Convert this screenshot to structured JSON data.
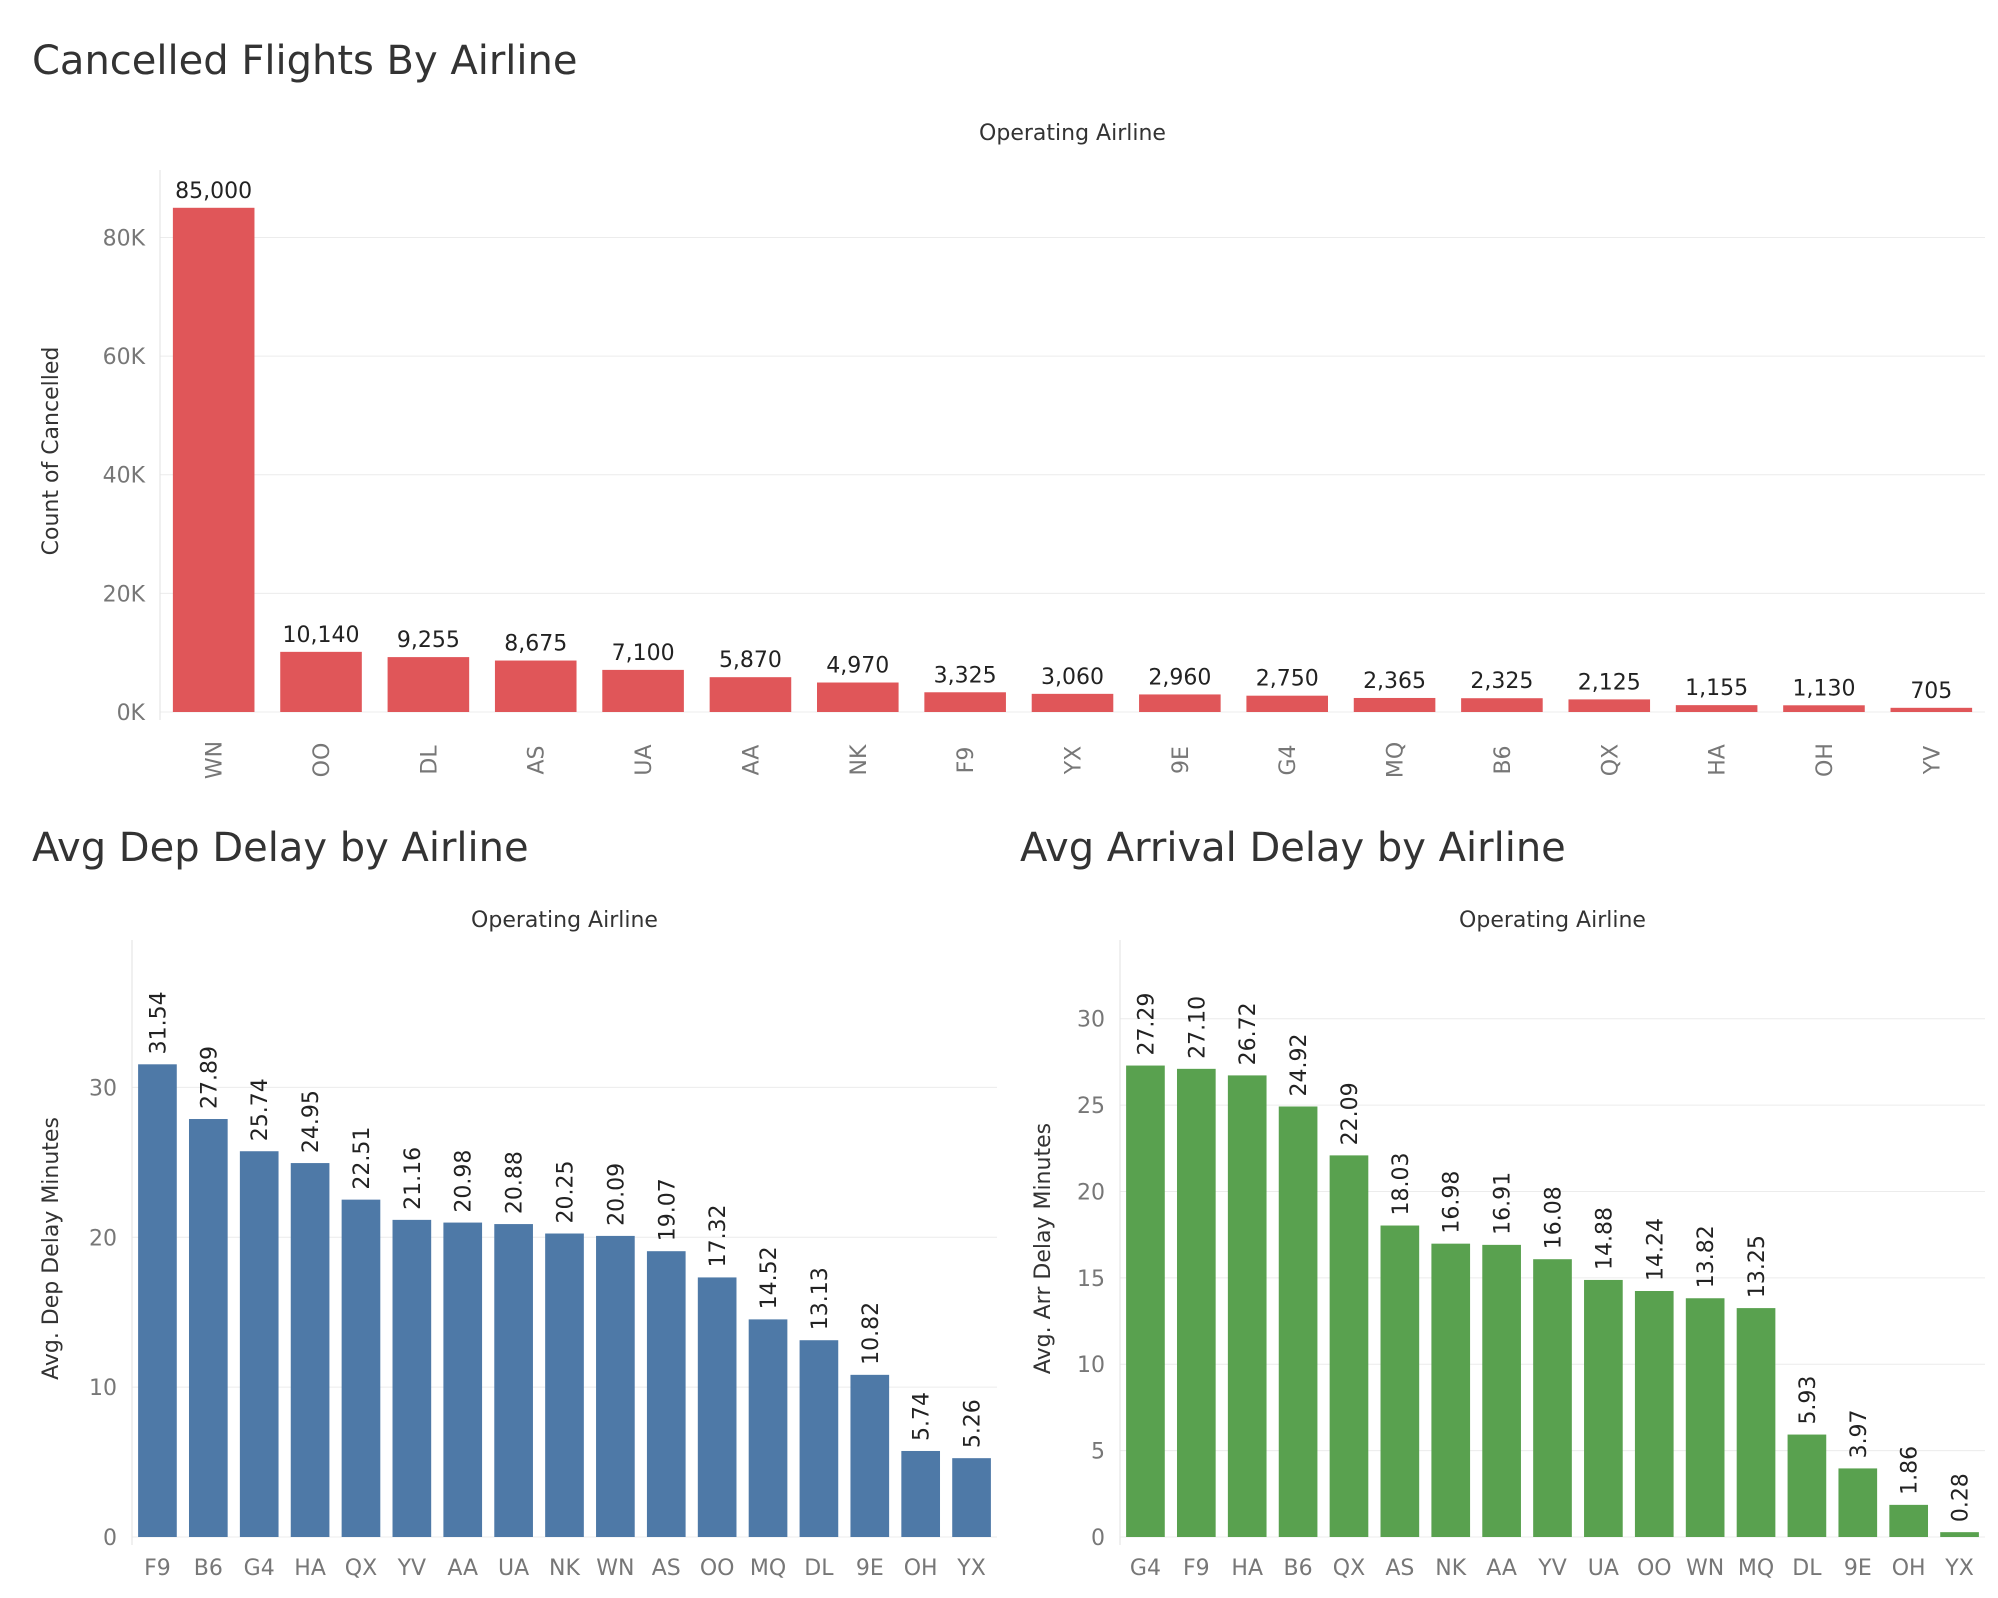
{
  "chart_data": [
    {
      "id": "cancelled",
      "type": "bar",
      "title": "Cancelled Flights By Airline",
      "xlabel": "Operating Airline",
      "ylabel": "Count of Cancelled",
      "categories": [
        "WN",
        "OO",
        "DL",
        "AS",
        "UA",
        "AA",
        "NK",
        "F9",
        "YX",
        "9E",
        "G4",
        "MQ",
        "B6",
        "QX",
        "HA",
        "OH",
        "YV"
      ],
      "values": [
        85000,
        10140,
        9255,
        8675,
        7100,
        5870,
        4970,
        3325,
        3060,
        2960,
        2750,
        2365,
        2325,
        2125,
        1155,
        1130,
        705
      ],
      "value_labels": [
        "85,000",
        "10,140",
        "9,255",
        "8,675",
        "7,100",
        "5,870",
        "4,970",
        "3,325",
        "3,060",
        "2,960",
        "2,750",
        "2,365",
        "2,325",
        "2,125",
        "1,155",
        "1,130",
        "705"
      ],
      "yticks": [
        0,
        20000,
        40000,
        60000,
        80000
      ],
      "ytick_labels": [
        "0K",
        "20K",
        "40K",
        "60K",
        "80K"
      ],
      "ylim": [
        0,
        88000
      ],
      "color": "#e05659",
      "rotate_x_labels": true,
      "rotate_value_labels": false,
      "grid": true
    },
    {
      "id": "dep",
      "type": "bar",
      "title": "Avg Dep Delay by Airline",
      "xlabel": "Operating Airline",
      "ylabel": "Avg. Dep Delay Minutes",
      "categories": [
        "F9",
        "B6",
        "G4",
        "HA",
        "QX",
        "YV",
        "AA",
        "UA",
        "NK",
        "WN",
        "AS",
        "OO",
        "MQ",
        "DL",
        "9E",
        "OH",
        "YX"
      ],
      "values": [
        31.54,
        27.89,
        25.74,
        24.95,
        22.51,
        21.16,
        20.98,
        20.88,
        20.25,
        20.09,
        19.07,
        17.32,
        14.52,
        13.13,
        10.82,
        5.74,
        5.26
      ],
      "value_labels": [
        "31.54",
        "27.89",
        "25.74",
        "24.95",
        "22.51",
        "21.16",
        "20.98",
        "20.88",
        "20.25",
        "20.09",
        "19.07",
        "17.32",
        "14.52",
        "13.13",
        "10.82",
        "5.74",
        "5.26"
      ],
      "yticks": [
        0,
        10,
        20,
        30
      ],
      "ytick_labels": [
        "0",
        "10",
        "20",
        "30"
      ],
      "ylim": [
        0,
        38.5
      ],
      "color": "#4e79a7",
      "rotate_x_labels": false,
      "rotate_value_labels": true,
      "grid": true
    },
    {
      "id": "arr",
      "type": "bar",
      "title": "Avg Arrival Delay by Airline",
      "xlabel": "Operating Airline",
      "ylabel": "Avg. Arr Delay Minutes",
      "categories": [
        "G4",
        "F9",
        "HA",
        "B6",
        "QX",
        "AS",
        "NK",
        "AA",
        "YV",
        "UA",
        "OO",
        "WN",
        "MQ",
        "DL",
        "9E",
        "OH",
        "YX"
      ],
      "values": [
        27.29,
        27.1,
        26.72,
        24.92,
        22.09,
        18.03,
        16.98,
        16.91,
        16.08,
        14.88,
        14.24,
        13.82,
        13.25,
        5.93,
        3.97,
        1.86,
        0.28
      ],
      "value_labels": [
        "27.29",
        "27.10",
        "26.72",
        "24.92",
        "22.09",
        "18.03",
        "16.98",
        "16.91",
        "16.08",
        "14.88",
        "14.24",
        "13.82",
        "13.25",
        "5.93",
        "3.97",
        "1.86",
        "0.28"
      ],
      "yticks": [
        0,
        5,
        10,
        15,
        20,
        25,
        30
      ],
      "ytick_labels": [
        "0",
        "5",
        "10",
        "15",
        "20",
        "25",
        "30"
      ],
      "ylim": [
        0,
        33.4
      ],
      "color": "#59a14f",
      "rotate_x_labels": false,
      "rotate_value_labels": true,
      "grid": true
    }
  ]
}
